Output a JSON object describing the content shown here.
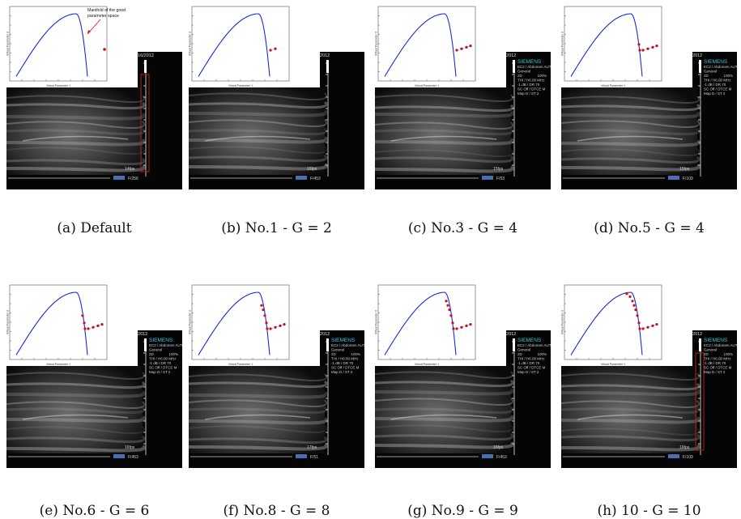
{
  "figure": {
    "panels": [
      {
        "id": "a",
        "caption": "(a) Default",
        "timestamp": "28 PM 1/16/2012",
        "fps": "14fps",
        "frame": "F/256",
        "points": 0,
        "brand": "",
        "show_settings": false
      },
      {
        "id": "b",
        "caption": "(b) No.1 - G = 2",
        "timestamp": "PM 1/16/2012",
        "fps": "16fps",
        "frame": "F/453",
        "points": 2,
        "brand": "",
        "show_settings": false
      },
      {
        "id": "c",
        "caption": "(c) No.3 - G = 4",
        "timestamp": "PM 1/16/2012",
        "fps": "15fps",
        "frame": "F/53",
        "points": 4,
        "brand": "SIEMENS",
        "show_settings": true
      },
      {
        "id": "d",
        "caption": "(d) No.5 - G = 4",
        "timestamp": "PM 1/16/2012",
        "fps": "15fps",
        "frame": "F/109",
        "points": 6,
        "brand": "SIEMENS",
        "show_settings": true
      },
      {
        "id": "e",
        "caption": "(e) No.6 - G = 6",
        "timestamp": "PM 1/16/2012",
        "fps": "16fps",
        "frame": "F/453",
        "points": 7,
        "brand": "SIEMENS",
        "show_settings": true
      },
      {
        "id": "f",
        "caption": "(f) No.8 - G = 8",
        "timestamp": "PM 1/16/2012",
        "fps": "17fps",
        "frame": "F/51",
        "points": 9,
        "brand": "SIEMENS",
        "show_settings": true
      },
      {
        "id": "g",
        "caption": "(g) No.9 - G = 9",
        "timestamp": "PM 1/16/2012",
        "fps": "16fps",
        "frame": "F/453",
        "points": 10,
        "brand": "SIEMENS",
        "show_settings": true
      },
      {
        "id": "h",
        "caption": "(h) 10 - G = 10",
        "timestamp": "PM 1/16/2012",
        "fps": "16fps",
        "frame": "F/109",
        "points": 12,
        "brand": "SIEMENS",
        "show_settings": true
      }
    ],
    "annotation": {
      "line1": "Manifold of the good",
      "line2": "parameter space"
    },
    "plot_labels": {
      "xlabel": "Virtual Parameter 1",
      "ylabel": "Virtual Parameter 2"
    },
    "settings": {
      "line1": "EC2 / Abdomen AUTO",
      "line2": "General",
      "line3": "2D",
      "line3_pct": "100%",
      "line4": "THI / H6.00 MHz",
      "line5": "-1 dB / DR 70",
      "line6": "SC Off / DTCE M",
      "line7": "Map D / ST 2"
    },
    "colors": {
      "curve": "#1a2bd8",
      "points": "#cc1010",
      "annotation": "#cc1010"
    }
  }
}
